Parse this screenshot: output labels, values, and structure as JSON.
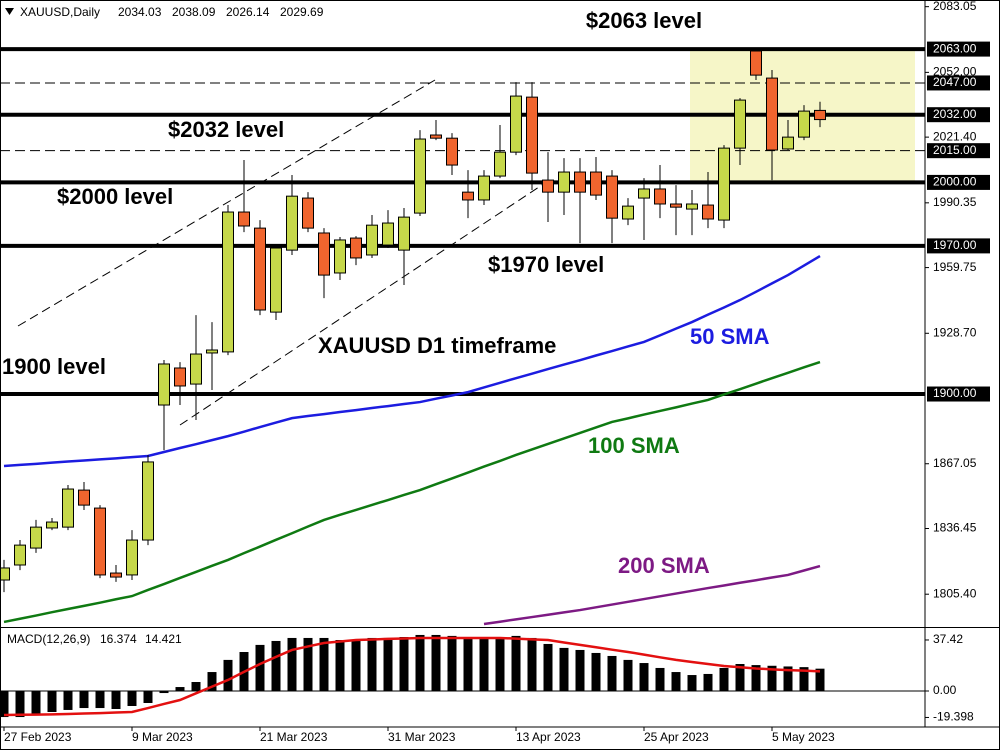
{
  "chart_data": [
    {
      "type": "candlestick",
      "title": "XAUUSD,Daily",
      "categories": [
        "27 Feb 2023",
        null,
        null,
        null,
        null,
        null,
        null,
        null,
        "9 Mar 2023",
        null,
        null,
        null,
        null,
        null,
        null,
        null,
        "21 Mar 2023",
        null,
        null,
        null,
        null,
        null,
        null,
        null,
        "31 Mar 2023",
        null,
        null,
        null,
        null,
        null,
        null,
        null,
        "13 Apr 2023",
        null,
        null,
        null,
        null,
        null,
        null,
        null,
        "25 Apr 2023",
        null,
        null,
        null,
        null,
        null,
        null,
        null,
        "5 May 2023",
        null,
        null,
        null
      ],
      "open": [
        1812.1,
        1819.2,
        1827.2,
        1836.7,
        1837.1,
        1854.6,
        1846.1,
        1815.4,
        1814.5,
        1831.0,
        1894.8,
        1912.3,
        1904.7,
        1919.4,
        1919.9,
        1986.0,
        1978.4,
        1938.7,
        1968.0,
        1992.6,
        1976.1,
        1957.2,
        1973.7,
        1965.7,
        1970.4,
        1968.0,
        1985.5,
        2022.4,
        2020.9,
        1995.4,
        1991.7,
        2003.0,
        2014.3,
        2040.3,
        2001.1,
        1995.4,
        2004.9,
        2004.9,
        2003.0,
        1982.7,
        1992.6,
        1996.9,
        1989.8,
        1987.4,
        1989.3,
        1982.2,
        2016.2,
        2062.1,
        2049.3,
        2015.8,
        2021.4,
        2034.03
      ],
      "high": [
        1821.6,
        1831.0,
        1840.5,
        1841.4,
        1857.0,
        1858.4,
        1847.5,
        1819.2,
        1835.7,
        1871.2,
        1916.1,
        1915.1,
        1937.3,
        1934.0,
        1989.3,
        2010.6,
        1982.2,
        1970.4,
        2003.5,
        1995.4,
        1978.4,
        1974.2,
        1974.6,
        1984.6,
        1986.9,
        1987.9,
        2024.7,
        2029.5,
        2023.3,
        2005.8,
        2005.8,
        2027.1,
        2047.4,
        2047.4,
        2014.3,
        2011.5,
        2011.5,
        2012.0,
        2005.8,
        1992.6,
        2002.0,
        2008.2,
        1998.7,
        1996.4,
        2004.9,
        2017.6,
        2039.8,
        2063.0,
        2053.1,
        2029.5,
        2036.5,
        2038.09
      ],
      "low": [
        1806.4,
        1816.8,
        1824.9,
        1835.7,
        1835.7,
        1845.2,
        1813.0,
        1811.2,
        1812.1,
        1828.6,
        1873.5,
        1894.8,
        1887.7,
        1901.9,
        1918.4,
        1976.5,
        1937.3,
        1935.0,
        1965.7,
        1976.5,
        1945.3,
        1953.9,
        1960.9,
        1964.3,
        1969.0,
        1951.5,
        1984.1,
        2020.0,
        2003.5,
        1983.1,
        1989.3,
        2002.0,
        2012.9,
        1996.4,
        1981.3,
        1984.6,
        1971.3,
        1991.7,
        1971.3,
        1979.8,
        1972.8,
        1983.1,
        1975.1,
        1975.1,
        1978.4,
        1978.4,
        2008.2,
        2048.4,
        2001.1,
        2015.3,
        2020.0,
        2026.14
      ],
      "close": [
        1817.8,
        1828.6,
        1837.1,
        1839.5,
        1855.1,
        1847.5,
        1814.5,
        1813.5,
        1831.0,
        1867.9,
        1914.2,
        1903.8,
        1918.9,
        1920.8,
        1986.0,
        1979.4,
        1939.7,
        1969.0,
        1993.5,
        1978.4,
        1956.2,
        1972.8,
        1964.3,
        1979.8,
        1980.8,
        1983.6,
        2020.5,
        2020.9,
        2008.2,
        1991.7,
        2003.0,
        2014.3,
        2040.8,
        2004.4,
        1995.4,
        2004.9,
        1995.4,
        1994.0,
        1983.1,
        1988.8,
        1996.9,
        1989.8,
        1988.3,
        1989.8,
        1982.7,
        2016.2,
        2038.9,
        2050.7,
        2015.3,
        2021.4,
        2033.7,
        2029.69
      ],
      "up_color": "#c6d84a",
      "down_color": "#f0652e",
      "series": [
        {
          "name": "50 SMA",
          "color": "#1c1ce0",
          "values": [
            1866.0,
            1866.5,
            1867.0,
            1867.6,
            1868.1,
            1868.6,
            1869.1,
            1869.6,
            1870.2,
            1870.7,
            1872.6,
            1874.5,
            1876.3,
            1878.2,
            1880.1,
            1882.2,
            1884.4,
            1886.5,
            1888.6,
            1889.6,
            1890.5,
            1891.5,
            1892.4,
            1893.4,
            1894.3,
            1895.3,
            1896.2,
            1897.8,
            1899.3,
            1900.9,
            1903.1,
            1905.3,
            1907.5,
            1909.6,
            1911.8,
            1913.9,
            1916.0,
            1918.2,
            1920.3,
            1922.5,
            1924.6,
            1927.7,
            1930.9,
            1934.0,
            1937.5,
            1940.9,
            1944.4,
            1948.3,
            1952.3,
            1956.2,
            1960.7,
            1965.2
          ]
        },
        {
          "name": "100 SMA",
          "color": "#0f7a12",
          "values": [
            1792.3,
            1793.8,
            1795.3,
            1796.9,
            1798.4,
            1799.9,
            1801.4,
            1803.0,
            1804.5,
            1807.4,
            1810.2,
            1813.1,
            1815.9,
            1818.8,
            1821.6,
            1824.8,
            1827.9,
            1831.1,
            1834.2,
            1837.4,
            1840.5,
            1842.9,
            1845.2,
            1847.6,
            1849.9,
            1852.3,
            1854.6,
            1857.4,
            1860.1,
            1862.9,
            1865.7,
            1868.4,
            1871.2,
            1873.8,
            1876.4,
            1879.0,
            1881.6,
            1884.2,
            1886.8,
            1888.5,
            1890.3,
            1892.0,
            1893.7,
            1895.5,
            1897.2,
            1899.8,
            1902.3,
            1904.9,
            1907.5,
            1910.0,
            1912.6,
            1915.1
          ]
        },
        {
          "name": "200 SMA",
          "color": "#7d1a84",
          "values": [
            null,
            null,
            null,
            null,
            null,
            null,
            null,
            null,
            null,
            null,
            null,
            null,
            null,
            null,
            null,
            null,
            null,
            null,
            null,
            null,
            null,
            null,
            null,
            null,
            null,
            null,
            null,
            null,
            null,
            null,
            1791.3,
            1792.4,
            1793.5,
            1794.6,
            1795.7,
            1796.8,
            1797.9,
            1799.2,
            1800.5,
            1801.8,
            1803.1,
            1804.4,
            1805.7,
            1807.0,
            1808.3,
            1809.5,
            1810.8,
            1812.0,
            1813.3,
            1814.5,
            1816.6,
            1818.7
          ]
        }
      ],
      "ylim": [
        1789.9,
        2086.2
      ],
      "yticks": [
        2083.05,
        {
          "value": 2052,
          "label": "2052.00"
        },
        {
          "value": 2021.4,
          "label": "2021.40"
        },
        1990.35,
        1959.75,
        {
          "value": 1928.7,
          "label": "1928.70"
        },
        1867.05,
        1836.45,
        {
          "value": 1805.4,
          "label": "1805.40"
        }
      ],
      "levels": [
        {
          "value": 2063,
          "label": "2063.00",
          "style": "solid"
        },
        {
          "value": 2047,
          "label": "2047.00",
          "style": "dashed"
        },
        {
          "value": 2032,
          "label": "2032.00",
          "style": "solid"
        },
        {
          "value": 2015,
          "label": "2015.00",
          "style": "dashed"
        },
        {
          "value": 2000,
          "label": "2000.00",
          "style": "solid"
        },
        {
          "value": 1970,
          "label": "1970.00",
          "style": "solid"
        },
        {
          "value": 1900,
          "label": "1900.00",
          "style": "solid"
        }
      ],
      "annotations": [
        "$2063 level",
        "$2032 level",
        "$2000 level",
        "$1970 level",
        "1900 level",
        "XAUUSD D1 timeframe"
      ]
    },
    {
      "type": "bar",
      "title": "MACD(12,26,9)",
      "values": [
        -19.1,
        -19.1,
        -17.6,
        -15.4,
        -13.9,
        -12.5,
        -12.5,
        -13.2,
        -11.0,
        -8.8,
        -1.5,
        2.9,
        6.6,
        13.9,
        22.8,
        28.6,
        33.8,
        36.7,
        38.9,
        38.9,
        38.9,
        37.4,
        37.4,
        38.9,
        38.9,
        39.6,
        41.1,
        41.1,
        40.4,
        39.6,
        39.6,
        39.6,
        40.4,
        38.9,
        34.5,
        31.6,
        30.1,
        27.9,
        25.7,
        22.8,
        20.5,
        16.9,
        13.9,
        11.7,
        12.5,
        16.9,
        19.8,
        19.0,
        18.5,
        18.0,
        17.5,
        16.374
      ],
      "color": "#000000",
      "signal_values": [
        -17.6,
        -17.4,
        -17.3,
        -17.1,
        -16.9,
        -16.5,
        -16.2,
        -15.8,
        -15.4,
        -12.5,
        -9.5,
        -6.6,
        -1.7,
        3.2,
        8.1,
        14.0,
        19.8,
        25.0,
        30.1,
        32.7,
        35.2,
        36.3,
        37.4,
        37.8,
        38.2,
        38.5,
        38.9,
        38.9,
        38.9,
        38.9,
        38.9,
        38.9,
        38.4,
        37.9,
        37.4,
        35.6,
        33.8,
        32.1,
        30.3,
        28.6,
        26.7,
        24.7,
        22.8,
        21.3,
        19.8,
        18.3,
        17.4,
        16.5,
        15.9,
        15.3,
        14.9,
        14.421
      ],
      "signal_color": "#e31010",
      "ylim": [
        -26.4,
        46.2
      ],
      "yticks": [
        37.42,
        {
          "value": 0,
          "label": "0.00"
        },
        -19.398
      ]
    }
  ]
}
